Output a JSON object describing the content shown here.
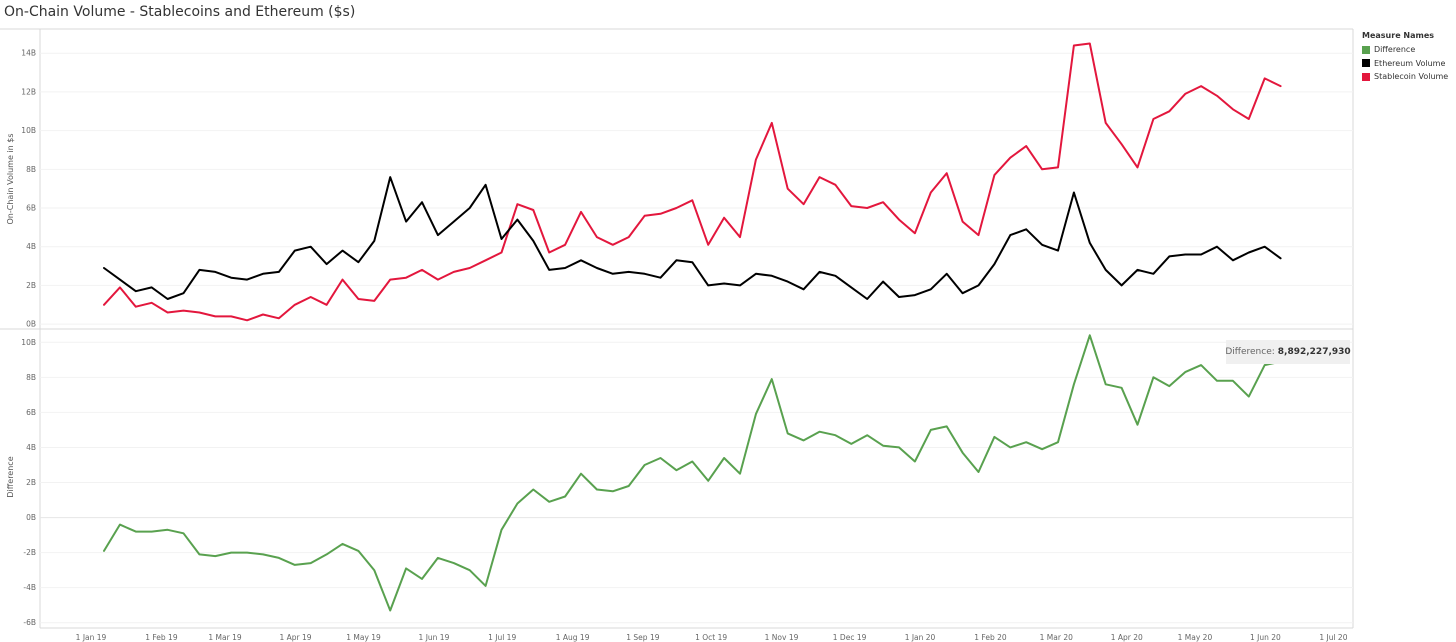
{
  "title": "On-Chain Volume - Stablecoins and Ethereum ($s)",
  "legend": {
    "title": "Measure Names",
    "items": [
      {
        "label": "Difference",
        "color": "#59a14f"
      },
      {
        "label": "Ethereum Volume",
        "color": "#000000"
      },
      {
        "label": "Stablecoin Volume",
        "color": "#e3173d"
      }
    ]
  },
  "tooltip": {
    "label": "Difference:",
    "value": "8,892,227,930"
  },
  "chart_data": [
    {
      "type": "line",
      "ylabel": "On-Chain Volume in $s",
      "ylim": [
        -0.2,
        15.2
      ],
      "yticks": [
        0,
        2,
        4,
        6,
        8,
        10,
        12,
        14
      ],
      "ytick_labels": [
        "0B",
        "2B",
        "4B",
        "6B",
        "8B",
        "10B",
        "12B",
        "14B"
      ],
      "x_unit": "weekly, from 1 Jan 2019",
      "grid": true,
      "series": [
        {
          "name": "Stablecoin Volume",
          "color": "#e3173d",
          "values": [
            1.0,
            1.9,
            0.9,
            1.1,
            0.6,
            0.7,
            0.6,
            0.4,
            0.4,
            0.2,
            0.5,
            0.3,
            1.0,
            1.4,
            1.0,
            2.3,
            1.3,
            1.2,
            2.3,
            2.4,
            2.8,
            2.3,
            2.7,
            2.9,
            3.3,
            3.7,
            6.2,
            5.9,
            3.7,
            4.1,
            5.8,
            4.5,
            4.1,
            4.5,
            5.6,
            5.7,
            6.0,
            6.4,
            4.1,
            5.5,
            4.5,
            8.5,
            10.4,
            7.0,
            6.2,
            7.6,
            7.2,
            6.1,
            6.0,
            6.3,
            5.4,
            4.7,
            6.8,
            7.8,
            5.3,
            4.6,
            7.7,
            8.6,
            9.2,
            8.0,
            8.1,
            14.4,
            14.5,
            10.4,
            9.3,
            8.1,
            10.6,
            11.0,
            11.9,
            12.3,
            11.8,
            11.1,
            10.6,
            12.7,
            12.3
          ]
        },
        {
          "name": "Ethereum Volume",
          "color": "#000000",
          "values": [
            2.9,
            2.3,
            1.7,
            1.9,
            1.3,
            1.6,
            2.8,
            2.7,
            2.4,
            2.3,
            2.6,
            2.7,
            3.8,
            4.0,
            3.1,
            3.8,
            3.2,
            4.3,
            7.6,
            5.3,
            6.3,
            4.6,
            5.3,
            6.0,
            7.2,
            4.4,
            5.4,
            4.3,
            2.8,
            2.9,
            3.3,
            2.9,
            2.6,
            2.7,
            2.6,
            2.4,
            3.3,
            3.2,
            2.0,
            2.1,
            2.0,
            2.6,
            2.5,
            2.2,
            1.8,
            2.7,
            2.5,
            1.9,
            1.3,
            2.2,
            1.4,
            1.5,
            1.8,
            2.6,
            1.6,
            2.0,
            3.1,
            4.6,
            4.9,
            4.1,
            3.8,
            6.8,
            4.2,
            2.8,
            2.0,
            2.8,
            2.6,
            3.5,
            3.6,
            3.6,
            4.0,
            3.3,
            3.7,
            4.0,
            3.4
          ]
        }
      ]
    },
    {
      "type": "line",
      "ylabel": "Difference",
      "ylim": [
        -6.3,
        10.7
      ],
      "yticks": [
        -6,
        -4,
        -2,
        0,
        2,
        4,
        6,
        8,
        10
      ],
      "ytick_labels": [
        "-6B",
        "-4B",
        "-2B",
        "0B",
        "2B",
        "4B",
        "6B",
        "8B",
        "10B"
      ],
      "x_unit": "weekly, from 1 Jan 2019",
      "grid": true,
      "series": [
        {
          "name": "Difference",
          "color": "#59a14f",
          "values": [
            -1.9,
            -0.4,
            -0.8,
            -0.8,
            -0.7,
            -0.9,
            -2.1,
            -2.2,
            -2.0,
            -2.0,
            -2.1,
            -2.3,
            -2.7,
            -2.6,
            -2.1,
            -1.5,
            -1.9,
            -3.0,
            -5.3,
            -2.9,
            -3.5,
            -2.3,
            -2.6,
            -3.0,
            -3.9,
            -0.7,
            0.8,
            1.6,
            0.9,
            1.2,
            2.5,
            1.6,
            1.5,
            1.8,
            3.0,
            3.4,
            2.7,
            3.2,
            2.1,
            3.4,
            2.5,
            5.9,
            7.9,
            4.8,
            4.4,
            4.9,
            4.7,
            4.2,
            4.7,
            4.1,
            4.0,
            3.2,
            5.0,
            5.2,
            3.7,
            2.6,
            4.6,
            4.0,
            4.3,
            3.9,
            4.3,
            7.6,
            10.4,
            7.6,
            7.4,
            5.3,
            8.0,
            7.5,
            8.3,
            8.7,
            7.8,
            7.8,
            6.9,
            8.7,
            8.9
          ]
        }
      ]
    }
  ],
  "x_axis": {
    "labels": [
      "1 Jan 19",
      "1 Feb 19",
      "1 Mar 19",
      "1 Apr 19",
      "1 May 19",
      "1 Jun 19",
      "1 Jul 19",
      "1 Aug 19",
      "1 Sep 19",
      "1 Oct 19",
      "1 Nov 19",
      "1 Dec 19",
      "1 Jan 20",
      "1 Feb 20",
      "1 Mar 20",
      "1 Apr 20",
      "1 May 20",
      "1 Jun 20",
      "1 Jul 20"
    ],
    "label_weeks": [
      0,
      4.43,
      8.43,
      12.86,
      17.14,
      21.57,
      25.86,
      30.29,
      34.71,
      39.0,
      43.43,
      47.71,
      52.14,
      56.57,
      60.71,
      65.14,
      69.43,
      73.86,
      78.14
    ]
  }
}
